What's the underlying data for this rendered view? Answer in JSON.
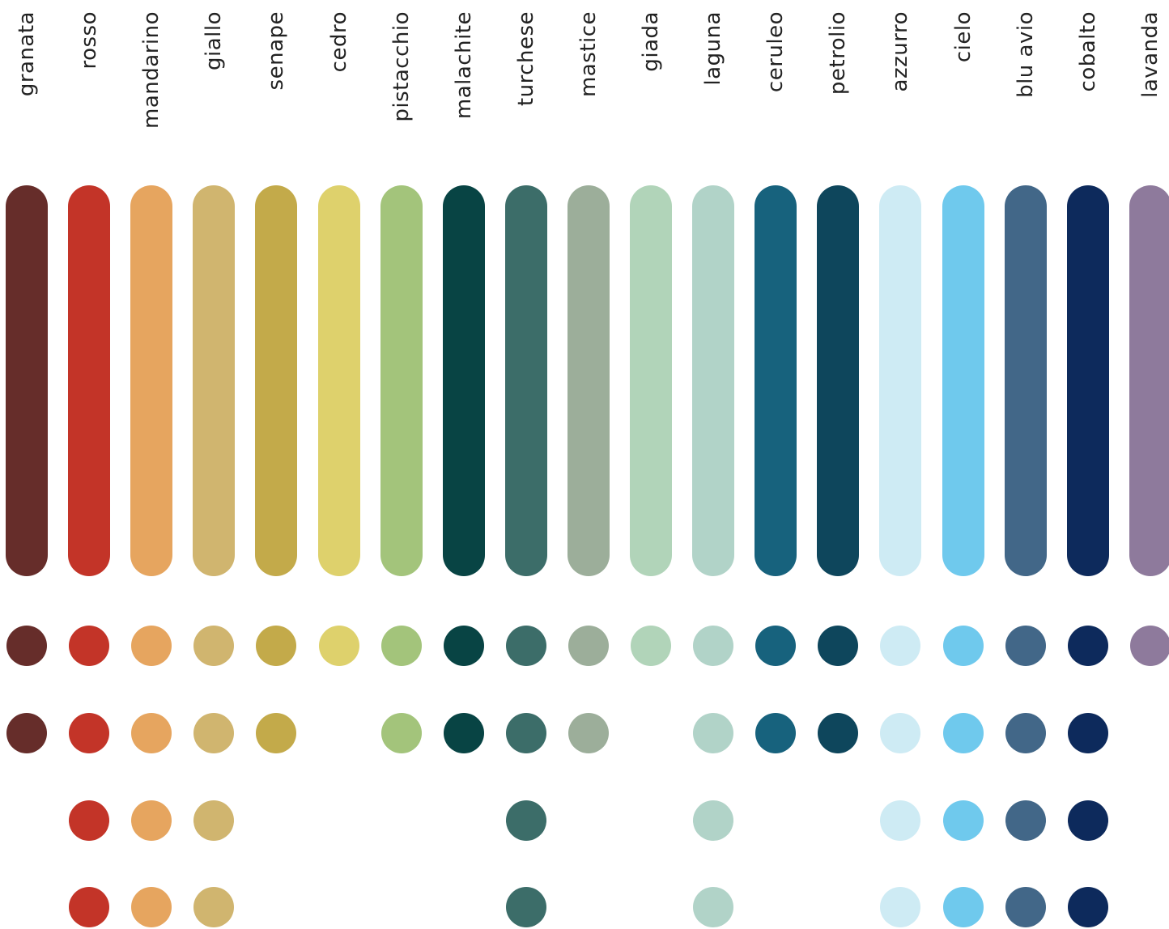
{
  "palette": [
    {
      "name": "granata",
      "color": "#662d2a",
      "tints": 2
    },
    {
      "name": "rosso",
      "color": "#c33428",
      "tints": 4
    },
    {
      "name": "mandarino",
      "color": "#e6a55f",
      "tints": 4
    },
    {
      "name": "giallo",
      "color": "#d0b56f",
      "tints": 4
    },
    {
      "name": "senape",
      "color": "#c3aa4a",
      "tints": 2
    },
    {
      "name": "cedro",
      "color": "#ded16c",
      "tints": 1
    },
    {
      "name": "pistacchio",
      "color": "#a3c47b",
      "tints": 2
    },
    {
      "name": "malachite",
      "color": "#084444",
      "tints": 2
    },
    {
      "name": "turchese",
      "color": "#3c6d69",
      "tints": 4
    },
    {
      "name": "mastice",
      "color": "#9cae9a",
      "tints": 2
    },
    {
      "name": "giada",
      "color": "#b1d4b9",
      "tints": 1
    },
    {
      "name": "laguna",
      "color": "#b1d3c8",
      "tints": 4
    },
    {
      "name": "ceruleo",
      "color": "#17627d",
      "tints": 2
    },
    {
      "name": "petrolio",
      "color": "#0e465c",
      "tints": 2
    },
    {
      "name": "azzurro",
      "color": "#ceebf4",
      "tints": 4
    },
    {
      "name": "cielo",
      "color": "#6fc9ed",
      "tints": 4
    },
    {
      "name": "blu avio",
      "color": "#426788",
      "tints": 4
    },
    {
      "name": "cobalto",
      "color": "#0d2a5c",
      "tints": 4
    },
    {
      "name": "lavanda",
      "color": "#8e7a9c",
      "tints": 1
    }
  ]
}
